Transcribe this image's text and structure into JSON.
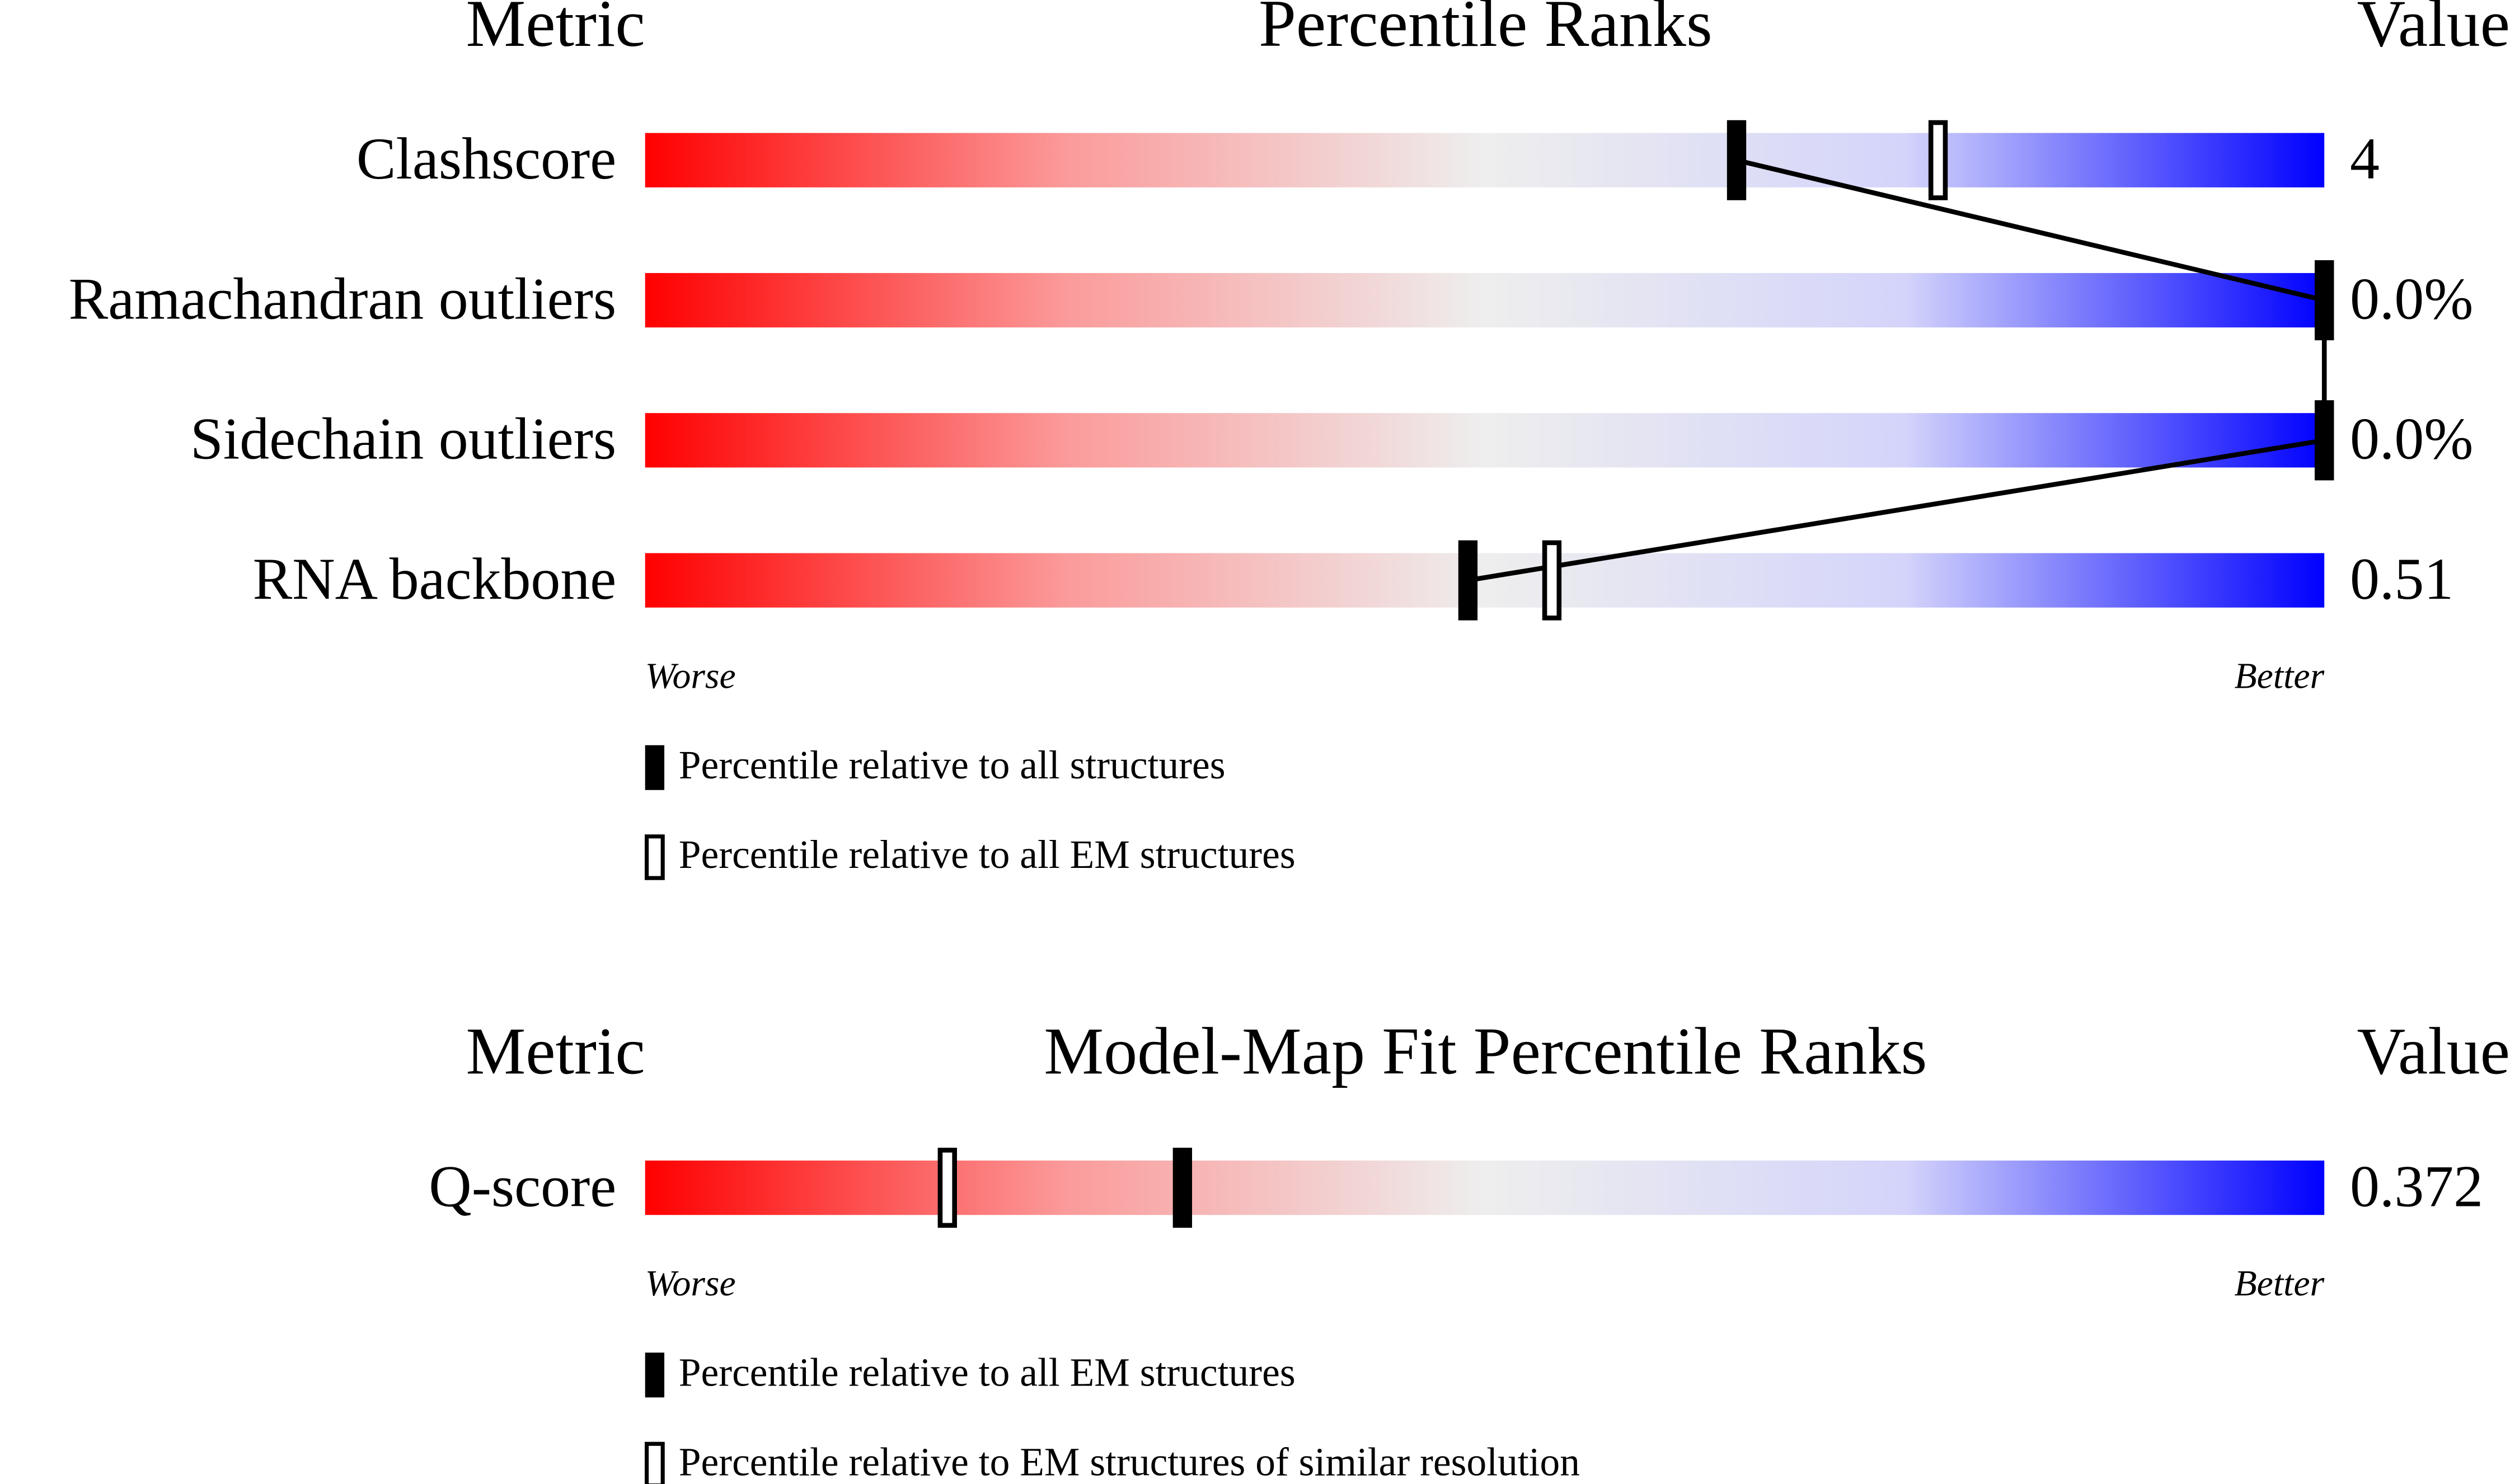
{
  "chart_data": [
    {
      "type": "percentile",
      "metric_header": "Metric",
      "title": "Percentile Ranks",
      "value_header": "Value",
      "categories": [
        "Clashscore",
        "Ramachandran outliers",
        "Sidechain outliers",
        "RNA backbone"
      ],
      "metric_values": [
        "4",
        "0.0%",
        "0.0%",
        "0.51"
      ],
      "xlim": [
        0,
        100
      ],
      "worse_label": "Worse",
      "better_label": "Better",
      "connect": true,
      "series": [
        {
          "name": "Percentile relative to all structures",
          "marker": "filled",
          "color": "#000000",
          "values": [
            65,
            100,
            100,
            49
          ]
        },
        {
          "name": "Percentile relative to all EM structures",
          "marker": "open",
          "color": "#000000",
          "values": [
            77,
            100,
            100,
            54
          ]
        }
      ]
    },
    {
      "type": "percentile",
      "metric_header": "Metric",
      "title": "Model-Map Fit Percentile Ranks",
      "value_header": "Value",
      "categories": [
        "Q-score"
      ],
      "metric_values": [
        "0.372"
      ],
      "xlim": [
        0,
        100
      ],
      "worse_label": "Worse",
      "better_label": "Better",
      "connect": false,
      "series": [
        {
          "name": "Percentile relative to all EM structures",
          "marker": "filled",
          "color": "#000000",
          "values": [
            32
          ]
        },
        {
          "name": "Percentile relative to EM structures of similar resolution",
          "marker": "open",
          "color": "#000000",
          "values": [
            18
          ]
        }
      ]
    }
  ]
}
